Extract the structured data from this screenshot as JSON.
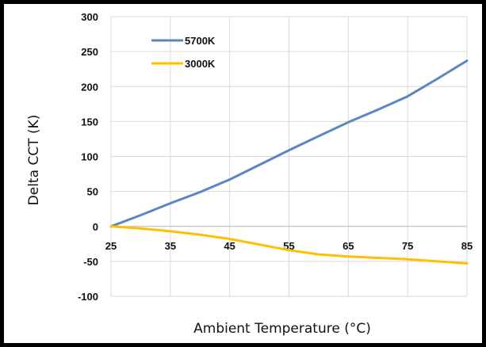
{
  "chart_data": {
    "type": "line",
    "xlabel": "Ambient Temperature (°C)",
    "ylabel": "Delta CCT (K)",
    "xlim": [
      25,
      85
    ],
    "ylim": [
      -100,
      300
    ],
    "x_ticks": [
      "25",
      "35",
      "45",
      "55",
      "65",
      "75",
      "85"
    ],
    "y_ticks": [
      "300",
      "250",
      "200",
      "150",
      "100",
      "50",
      "0",
      "-50",
      "-100"
    ],
    "grid": true,
    "legend_position": "top-left",
    "series": [
      {
        "name": "5700K",
        "color": "#5b86c4",
        "x": [
          25,
          30,
          35,
          40,
          45,
          50,
          55,
          60,
          65,
          70,
          75,
          80,
          85
        ],
        "y": [
          0,
          16,
          33,
          49,
          67,
          88,
          109,
          129,
          149,
          167,
          186,
          211,
          237
        ]
      },
      {
        "name": "3000K",
        "color": "#ffc000",
        "x": [
          25,
          30,
          35,
          40,
          45,
          50,
          55,
          60,
          65,
          70,
          75,
          80,
          85
        ],
        "y": [
          0,
          -3,
          -7,
          -12,
          -18,
          -26,
          -34,
          -40,
          -43,
          -45,
          -47,
          -50,
          -53
        ]
      }
    ]
  }
}
